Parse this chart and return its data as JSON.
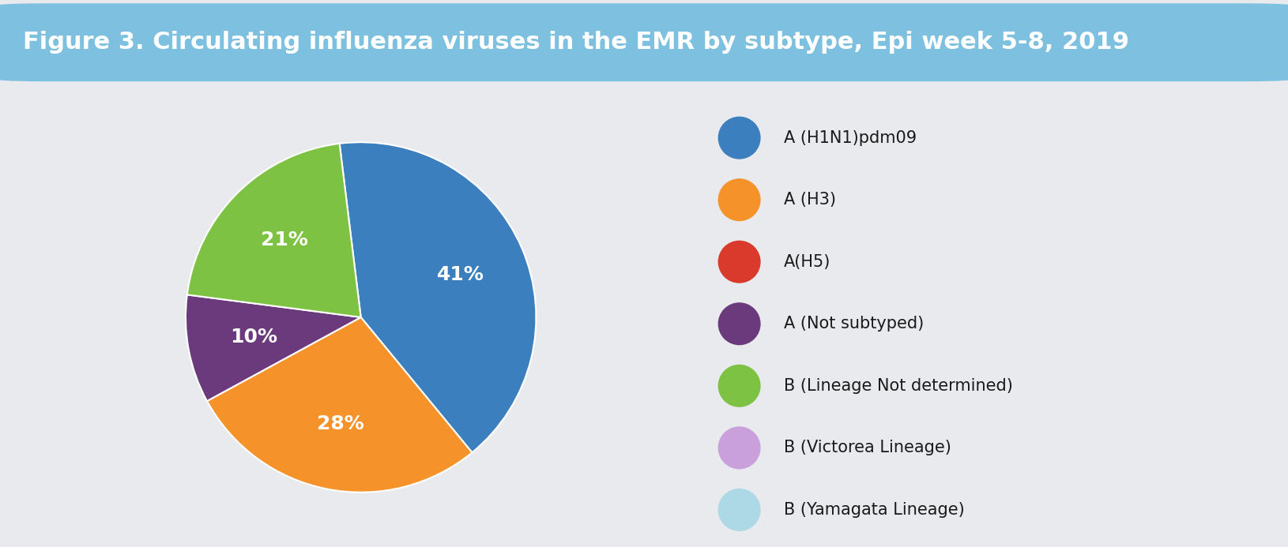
{
  "title": "Figure 3. Circulating influenza viruses in the EMR by subtype, Epi week 5-8, 2019",
  "title_bg_color": "#7DC0E0",
  "title_text_color": "#FFFFFF",
  "background_color": "#E8EAED",
  "slices": [
    41,
    28,
    0,
    10,
    21,
    0,
    0
  ],
  "slice_colors": [
    "#3B7FBF",
    "#F5932A",
    "#D93A2B",
    "#6B3A7D",
    "#7DC243",
    "#C9A0DC",
    "#ADD8E6"
  ],
  "slice_labels": [
    "41%",
    "28%",
    "",
    "10%",
    "21%",
    "",
    ""
  ],
  "legend_labels": [
    "A (H1N1)pdm09",
    "A (H3)",
    "A(H5)",
    "A (Not subtyped)",
    "B (Lineage Not determined)",
    "B (Victorea Lineage)",
    "B (Yamagata Lineage)"
  ],
  "legend_colors": [
    "#3B7FBF",
    "#F5932A",
    "#D93A2B",
    "#6B3A7D",
    "#7DC243",
    "#C9A0DC",
    "#ADD8E6"
  ],
  "label_fontsize": 18,
  "legend_fontsize": 15,
  "title_fontsize": 22,
  "startangle": 97
}
